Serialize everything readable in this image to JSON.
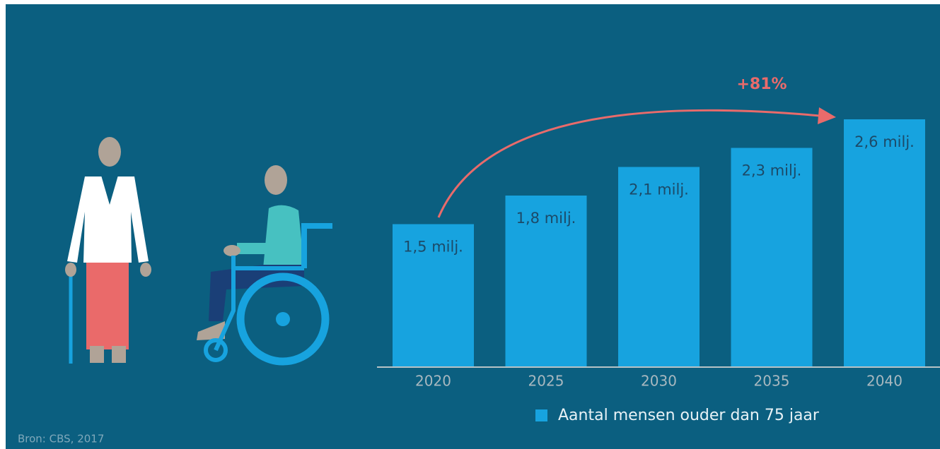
{
  "chart_data": {
    "type": "bar",
    "categories": [
      "2020",
      "2025",
      "2030",
      "2035",
      "2040"
    ],
    "values": [
      1.5,
      1.8,
      2.1,
      2.3,
      2.6
    ],
    "value_labels": [
      "1,5 milj.",
      "1,8 milj.",
      "2,1 milj.",
      "2,3 milj.",
      "2,6 milj."
    ],
    "color": "#17a3df",
    "annotation": "+81%",
    "legend": "Aantal mensen ouder dan 75 jaar",
    "source": "Bron: CBS, 2017"
  }
}
